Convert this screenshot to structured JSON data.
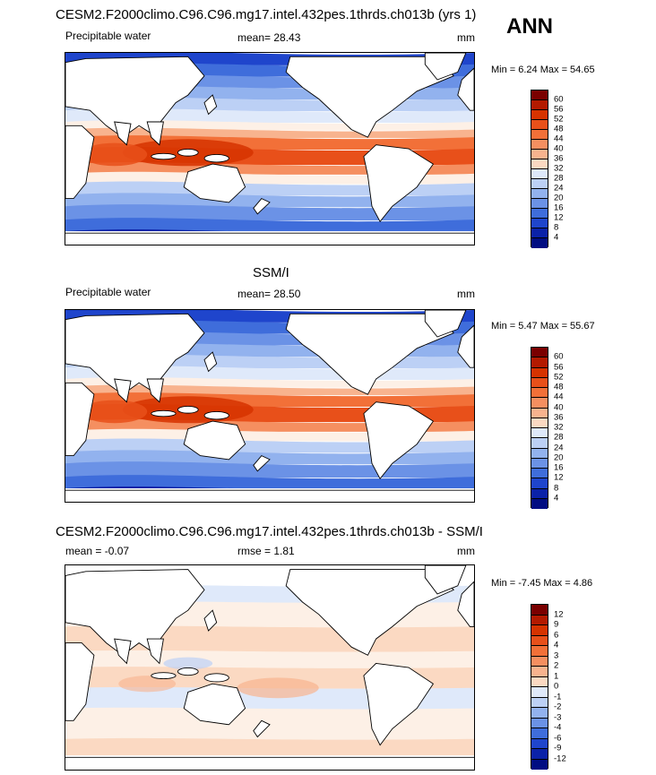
{
  "season_label": "ANN",
  "panels": [
    {
      "title": "CESM2.F2000climo.C96.C96.mg17.intel.432pes.1thrds.ch013b (yrs 1)",
      "variable": "Precipitable water",
      "stat1": "mean=  28.43",
      "stat2": "",
      "units": "mm",
      "minmax": "Min =   6.24 Max =  54.65",
      "colorbar_labels": [
        "60",
        "56",
        "52",
        "48",
        "44",
        "40",
        "36",
        "32",
        "28",
        "24",
        "20",
        "16",
        "12",
        "8",
        "4"
      ]
    },
    {
      "title": "SSM/I",
      "variable": "Precipitable water",
      "stat1": "mean=  28.50",
      "stat2": "",
      "units": "mm",
      "minmax": "Min =   5.47 Max =  55.67",
      "colorbar_labels": [
        "60",
        "56",
        "52",
        "48",
        "44",
        "40",
        "36",
        "32",
        "28",
        "24",
        "20",
        "16",
        "12",
        "8",
        "4"
      ]
    },
    {
      "title": "CESM2.F2000climo.C96.C96.mg17.intel.432pes.1thrds.ch013b - SSM/I",
      "variable": "mean =  -0.07",
      "stat1": "rmse =   1.81",
      "stat2": "",
      "units": "mm",
      "minmax": "Min =  -7.45 Max =   4.86",
      "colorbar_labels": [
        "12",
        "9",
        "6",
        "4",
        "3",
        "2",
        "1",
        "0",
        "-1",
        "-2",
        "-3",
        "-4",
        "-6",
        "-9",
        "-12"
      ]
    }
  ],
  "colors": {
    "scale": [
      "#7a0000",
      "#b31a00",
      "#d63300",
      "#e8501a",
      "#f27038",
      "#f58f60",
      "#f8b38e",
      "#fbd9c2",
      "#fdf0e6",
      "#dfe9fa",
      "#bcd0f5",
      "#92b2ee",
      "#6b92e6",
      "#3f6ddb",
      "#1f45cc",
      "#0b22a8",
      "#010d82"
    ],
    "land": "#ffffff",
    "coast": "#000000"
  }
}
